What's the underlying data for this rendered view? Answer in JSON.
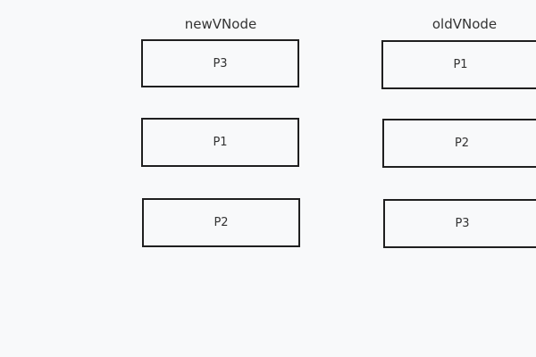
{
  "diagram": {
    "columns": [
      {
        "title": "newVNode",
        "nodes": [
          "P3",
          "P1",
          "P2"
        ]
      },
      {
        "title": "oldVNode",
        "nodes": [
          "P1",
          "P2",
          "P3"
        ]
      }
    ]
  },
  "colors": {
    "background": "#f8f9fa",
    "border": "#1f1f1f",
    "text": "#333333"
  }
}
